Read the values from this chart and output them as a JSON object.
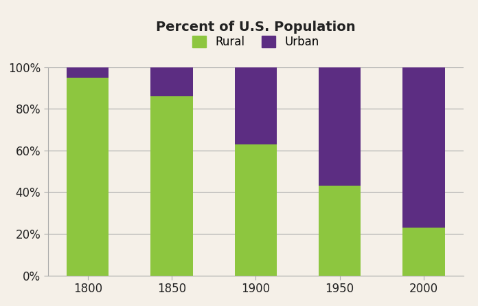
{
  "years": [
    "1800",
    "1850",
    "1900",
    "1950",
    "2000"
  ],
  "rural": [
    95,
    86,
    63,
    43,
    23
  ],
  "urban": [
    5,
    14,
    37,
    57,
    77
  ],
  "rural_color": "#8dc63f",
  "urban_color": "#5c2d82",
  "title": "Percent of U.S. Population",
  "title_fontsize": 14,
  "legend_fontsize": 12,
  "tick_fontsize": 12,
  "background_color": "#f5f0e8",
  "grid_color": "#aaaaaa",
  "ylim": [
    0,
    100
  ],
  "bar_width": 0.5
}
